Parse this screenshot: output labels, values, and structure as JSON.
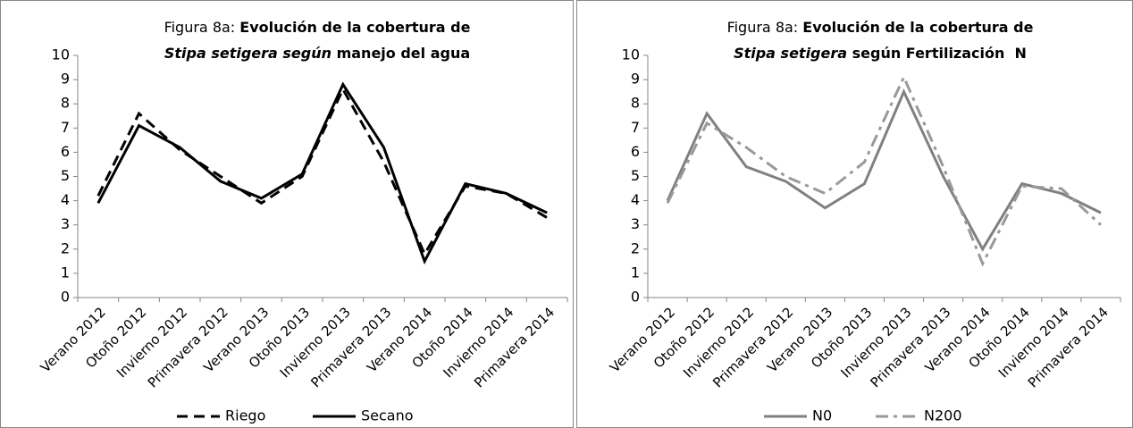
{
  "chart_data": [
    {
      "type": "line",
      "title": [
        "Figura 8a: ",
        "Evolución de la cobertura de",
        "Stipa setigera según",
        " manejo del agua"
      ],
      "categories": [
        "Verano 2012",
        "Otoño 2012",
        "Invierno 2012",
        "Primavera 2012",
        "Verano 2013",
        "Otoño 2013",
        "Invierno 2013",
        "Primavera 2013",
        "Verano 2014",
        "Otoño 2014",
        "Invierno 2014",
        "Primavera 2014"
      ],
      "series": [
        {
          "name": "Riego",
          "color": "#000000",
          "dash": "dashed",
          "values": [
            4.2,
            7.6,
            6.1,
            5.0,
            3.9,
            5.0,
            8.6,
            5.6,
            1.8,
            4.6,
            4.3,
            3.3
          ]
        },
        {
          "name": "Secano",
          "color": "#000000",
          "dash": "solid",
          "values": [
            3.9,
            7.1,
            6.2,
            4.8,
            4.1,
            5.1,
            8.8,
            6.2,
            1.5,
            4.7,
            4.3,
            3.5
          ]
        }
      ],
      "ylim": [
        0,
        10
      ],
      "yticks": [
        0,
        1,
        2,
        3,
        4,
        5,
        6,
        7,
        8,
        9,
        10
      ],
      "legend": "bottom"
    },
    {
      "type": "line",
      "title": [
        "Figura 8a: ",
        "Evolución de la cobertura de",
        "Stipa setigera",
        " según Fertilización  N"
      ],
      "categories": [
        "Verano 2012",
        "Otoño 2012",
        "Invierno 2012",
        "Primavera 2012",
        "Verano 2013",
        "Otoño 2013",
        "Invierno 2013",
        "Primavera 2013",
        "Verano 2014",
        "Otoño 2014",
        "Invierno 2014",
        "Primavera 2014"
      ],
      "series": [
        {
          "name": "N0",
          "color": "#808080",
          "dash": "solid",
          "values": [
            4.0,
            7.6,
            5.4,
            4.8,
            3.7,
            4.7,
            8.5,
            5.0,
            2.0,
            4.7,
            4.3,
            3.5
          ]
        },
        {
          "name": "N200",
          "color": "#999999",
          "dash": "dashdot",
          "values": [
            3.9,
            7.2,
            6.2,
            5.0,
            4.3,
            5.6,
            9.1,
            5.4,
            1.4,
            4.6,
            4.5,
            3.0
          ]
        }
      ],
      "ylim": [
        0,
        10
      ],
      "yticks": [
        0,
        1,
        2,
        3,
        4,
        5,
        6,
        7,
        8,
        9,
        10
      ],
      "legend": "bottom"
    }
  ]
}
